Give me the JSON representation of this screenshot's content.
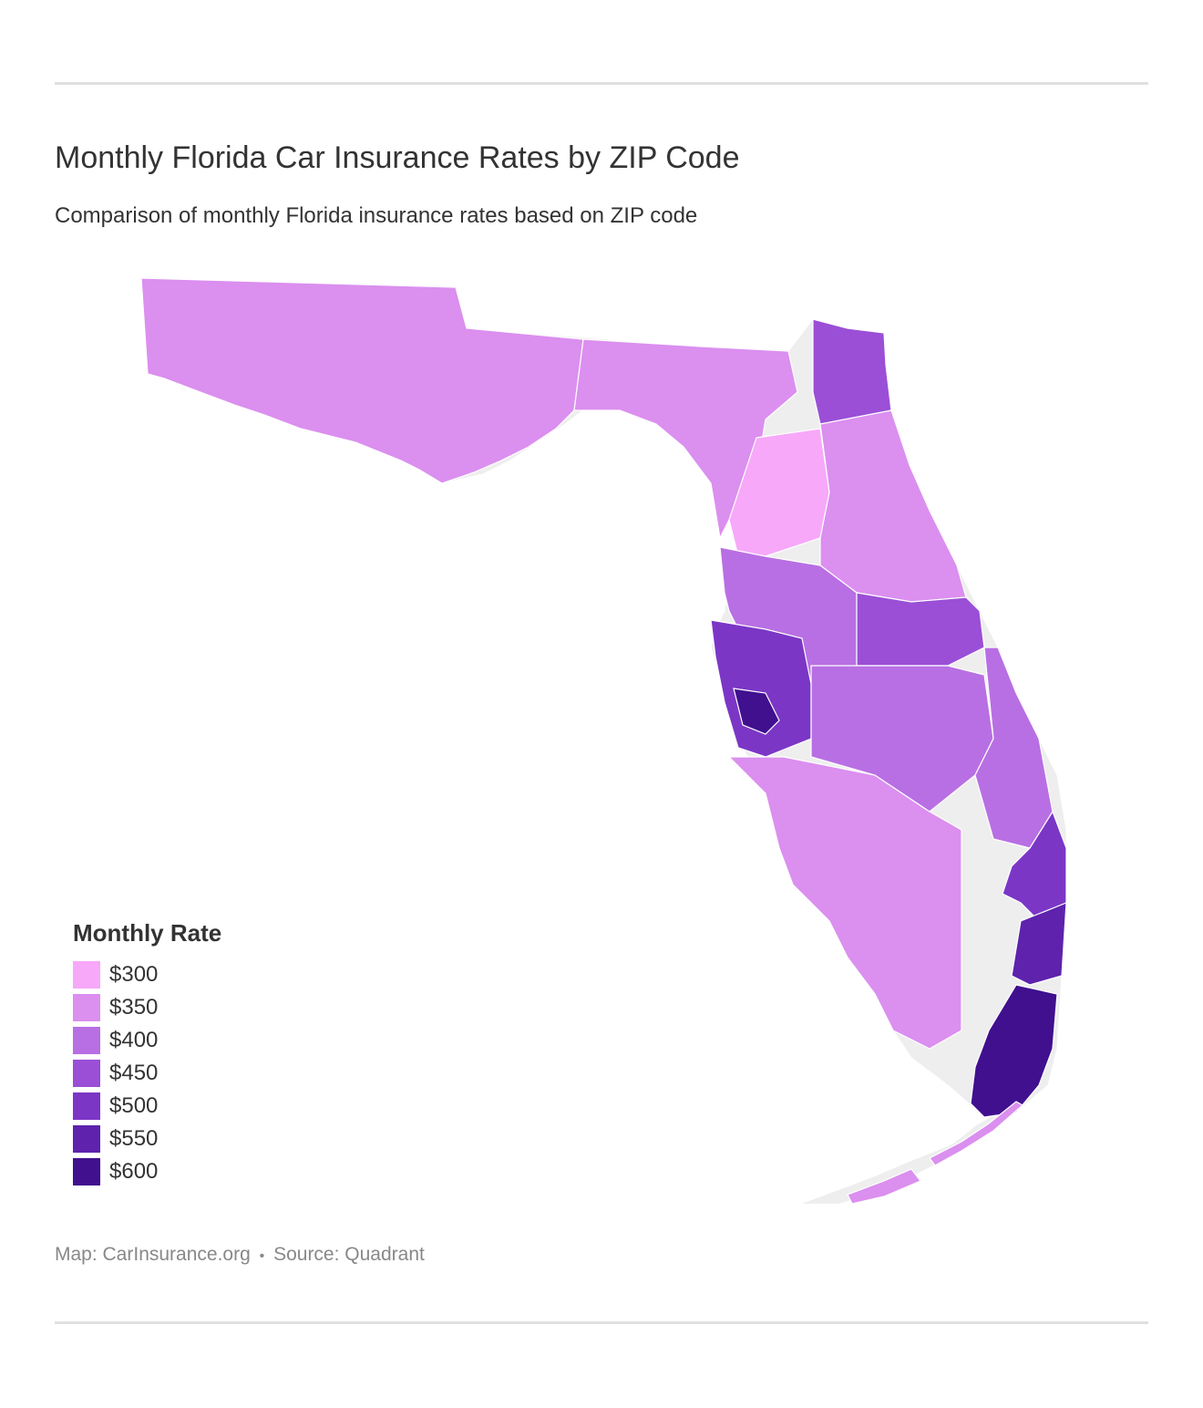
{
  "header": {
    "title": "Monthly Florida Car Insurance Rates by ZIP Code",
    "subtitle": "Comparison of monthly Florida insurance rates based on ZIP code"
  },
  "legend": {
    "title": "Monthly Rate",
    "items": [
      {
        "label": "$300",
        "color": "#f7a8f9"
      },
      {
        "label": "$350",
        "color": "#db8fef"
      },
      {
        "label": "$400",
        "color": "#b86fe3"
      },
      {
        "label": "$450",
        "color": "#9a4fd6"
      },
      {
        "label": "$500",
        "color": "#7b36c6"
      },
      {
        "label": "$550",
        "color": "#5e22ac"
      },
      {
        "label": "$600",
        "color": "#40108f"
      }
    ]
  },
  "map": {
    "no_data_color": "#eeeeee",
    "regions": [
      {
        "name": "panhandle",
        "rate": 350
      },
      {
        "name": "big-bend",
        "rate": 350
      },
      {
        "name": "north-central",
        "rate": 300
      },
      {
        "name": "jacksonville",
        "rate": 450
      },
      {
        "name": "northeast-coast",
        "rate": 350
      },
      {
        "name": "central",
        "rate": 400
      },
      {
        "name": "orlando",
        "rate": 450
      },
      {
        "name": "tampa-bay",
        "rate": 500
      },
      {
        "name": "tampa-core",
        "rate": 600
      },
      {
        "name": "southwest-coast",
        "rate": 350
      },
      {
        "name": "central-south",
        "rate": 400
      },
      {
        "name": "treasure-coast",
        "rate": 400
      },
      {
        "name": "palm-beach",
        "rate": 500
      },
      {
        "name": "broward",
        "rate": 550
      },
      {
        "name": "miami-dade",
        "rate": 600
      },
      {
        "name": "keys",
        "rate": 350
      }
    ]
  },
  "footer": {
    "map_credit": "Map: CarInsurance.org",
    "separator": "•",
    "source": "Source: Quadrant"
  }
}
